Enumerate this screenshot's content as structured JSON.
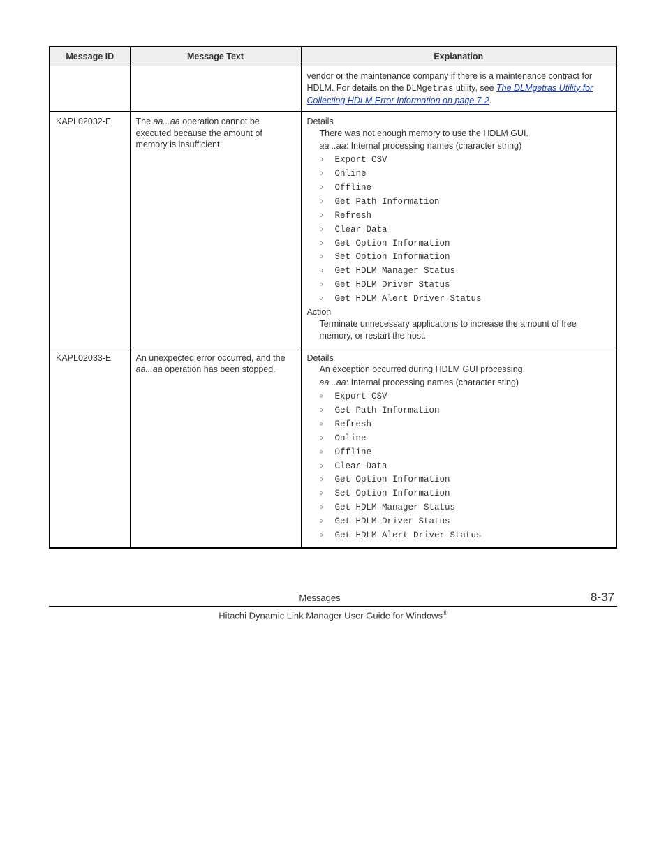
{
  "table": {
    "headers": {
      "id": "Message ID",
      "text": "Message Text",
      "exp": "Explanation"
    },
    "rows": [
      {
        "id": "",
        "text_parts": [],
        "exp": {
          "prelude_pre": "vendor or the maintenance company if there is a maintenance contract for HDLM. For details on the ",
          "prelude_mono": "DLMgetras",
          "prelude_mid": " utility, see ",
          "prelude_link": "The DLMgetras Utility for Collecting HDLM Error Information on page 7-2",
          "prelude_post": "."
        }
      },
      {
        "id": "KAPL02032-E",
        "text_pre": "The ",
        "text_it": "aa...aa",
        "text_post": " operation cannot be executed because the amount of memory is insufficient.",
        "exp": {
          "details_label": "Details",
          "details_line1": "There was not enough memory to use the HDLM GUI.",
          "details_it": "aa...aa",
          "details_line2_post": ": Internal processing names (character string)",
          "items": [
            "Export CSV",
            "Online",
            "Offline",
            "Get Path Information",
            "Refresh",
            "Clear Data",
            "Get Option Information",
            "Set Option Information",
            "Get HDLM Manager Status",
            "Get HDLM Driver Status",
            "Get HDLM Alert Driver Status"
          ],
          "action_label": "Action",
          "action_text": "Terminate unnecessary applications to increase the amount of free memory, or restart the host."
        }
      },
      {
        "id": "KAPL02033-E",
        "text_pre": "An unexpected error occurred, and the ",
        "text_it": "aa...aa",
        "text_post": " operation has been stopped.",
        "exp": {
          "details_label": "Details",
          "details_line1": "An exception occurred during HDLM GUI processing.",
          "details_it": "aa...aa",
          "details_line2_post": ": Internal processing names (character sting)",
          "items": [
            "Export CSV",
            "Get Path Information",
            "Refresh",
            "Online",
            "Offline",
            "Clear Data",
            "Get Option Information",
            "Set Option Information",
            "Get HDLM Manager Status",
            "Get HDLM Driver Status",
            "Get HDLM Alert Driver Status"
          ]
        }
      }
    ]
  },
  "footer": {
    "center": "Messages",
    "page": "8-37",
    "bottom_pre": "Hitachi Dynamic Link Manager User Guide for Windows",
    "bottom_sup": "®"
  }
}
